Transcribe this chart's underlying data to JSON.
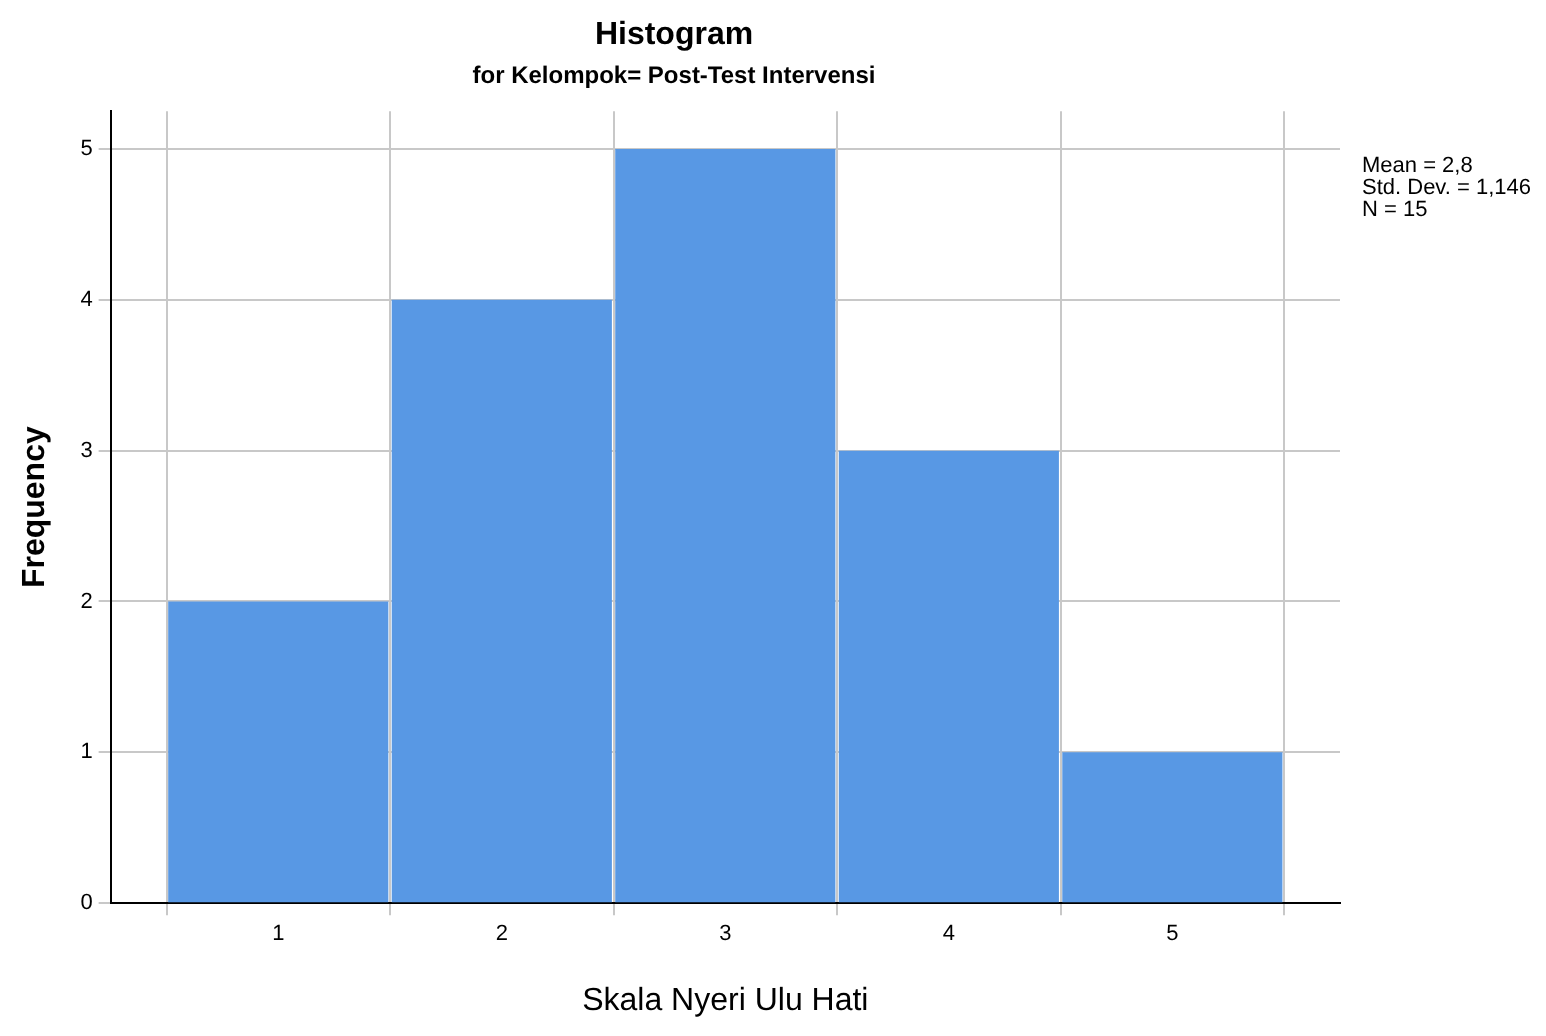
{
  "chart_data": {
    "type": "histogram",
    "title": "Histogram",
    "subtitle": "for Kelompok= Post-Test Intervensi",
    "xlabel": "Skala Nyeri Ulu Hati",
    "ylabel": "Frequency",
    "bins": [
      0.5,
      1.5,
      2.5,
      3.5,
      4.5,
      5.5
    ],
    "values": [
      2,
      4,
      5,
      3,
      1
    ],
    "color": "#5898e4",
    "xlim": [
      0.25,
      5.75
    ],
    "xticks": [
      1,
      2,
      3,
      4,
      5
    ],
    "ylim": [
      0,
      5.25
    ],
    "yticks": [
      0,
      1,
      2,
      3,
      4,
      5
    ],
    "grid": true,
    "annotations": [
      "Mean = 2,8",
      "Std. Dev. = 1,146",
      "N = 15"
    ]
  }
}
